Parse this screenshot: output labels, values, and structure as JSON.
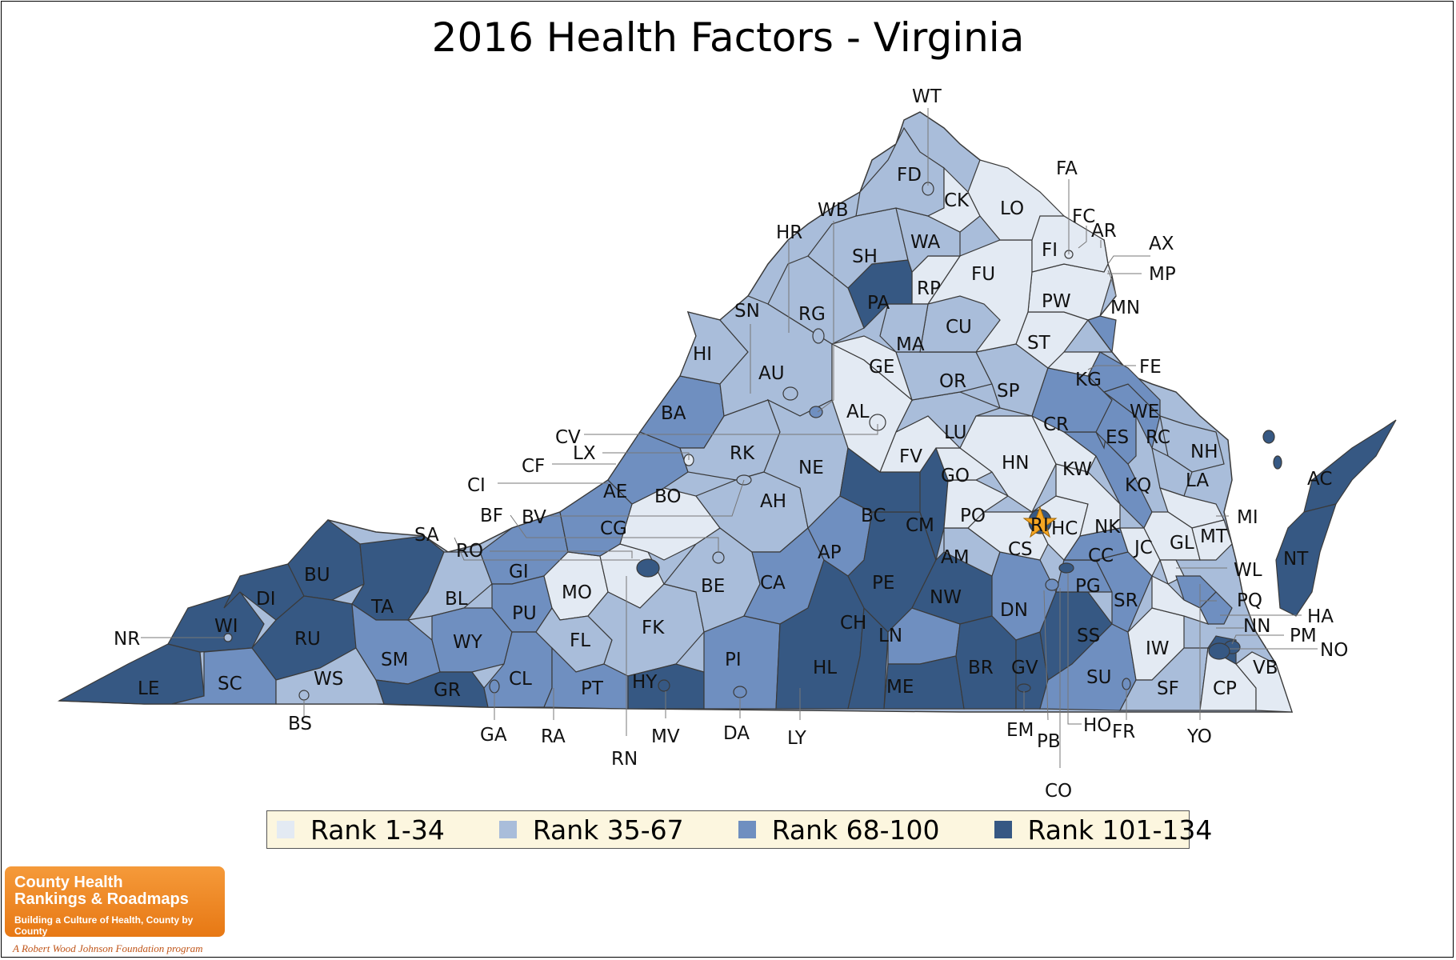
{
  "title": "2016 Health Factors - Virginia",
  "colors": {
    "rank_1_34": "#e3eaf3",
    "rank_35_67": "#a9bdda",
    "rank_68_100": "#6f8fc0",
    "rank_101_134": "#365883",
    "border": "#3a3a3a",
    "star": "#f5a623"
  },
  "legend": [
    {
      "label": "Rank 1-34",
      "color": "#e3eaf3"
    },
    {
      "label": "Rank 35-67",
      "color": "#a9bdda"
    },
    {
      "label": "Rank 68-100",
      "color": "#6f8fc0"
    },
    {
      "label": "Rank 101-134",
      "color": "#365883"
    }
  ],
  "counties": [
    {
      "code": "WT",
      "tier": 2
    },
    {
      "code": "FD",
      "tier": 2
    },
    {
      "code": "CK",
      "tier": 1
    },
    {
      "code": "LO",
      "tier": 1
    },
    {
      "code": "FA",
      "tier": 1
    },
    {
      "code": "FC",
      "tier": 1
    },
    {
      "code": "AR",
      "tier": 1
    },
    {
      "code": "AX",
      "tier": 1
    },
    {
      "code": "FI",
      "tier": 1
    },
    {
      "code": "MP",
      "tier": 1
    },
    {
      "code": "MN",
      "tier": 2
    },
    {
      "code": "WB",
      "tier": 2
    },
    {
      "code": "HR",
      "tier": 2
    },
    {
      "code": "SH",
      "tier": 2
    },
    {
      "code": "WA",
      "tier": 2
    },
    {
      "code": "FU",
      "tier": 1
    },
    {
      "code": "PW",
      "tier": 1
    },
    {
      "code": "PA",
      "tier": 4
    },
    {
      "code": "RP",
      "tier": 1
    },
    {
      "code": "RG",
      "tier": 2
    },
    {
      "code": "SN",
      "tier": 2
    },
    {
      "code": "CU",
      "tier": 2
    },
    {
      "code": "ST",
      "tier": 1
    },
    {
      "code": "MA",
      "tier": 2
    },
    {
      "code": "HI",
      "tier": 2
    },
    {
      "code": "AU",
      "tier": 2
    },
    {
      "code": "GE",
      "tier": 1
    },
    {
      "code": "FE",
      "tier": 2
    },
    {
      "code": "KG",
      "tier": 1
    },
    {
      "code": "OR",
      "tier": 2
    },
    {
      "code": "SP",
      "tier": 2
    },
    {
      "code": "BA",
      "tier": 3
    },
    {
      "code": "AL",
      "tier": 1
    },
    {
      "code": "WE",
      "tier": 3
    },
    {
      "code": "CR",
      "tier": 3
    },
    {
      "code": "CV",
      "tier": 2
    },
    {
      "code": "LU",
      "tier": 2
    },
    {
      "code": "ES",
      "tier": 3
    },
    {
      "code": "RC",
      "tier": 3
    },
    {
      "code": "LX",
      "tier": 2
    },
    {
      "code": "RK",
      "tier": 2
    },
    {
      "code": "NH",
      "tier": 2
    },
    {
      "code": "FV",
      "tier": 1
    },
    {
      "code": "HN",
      "tier": 1
    },
    {
      "code": "CF",
      "tier": 3
    },
    {
      "code": "NE",
      "tier": 2
    },
    {
      "code": "KW",
      "tier": 1
    },
    {
      "code": "LA",
      "tier": 2
    },
    {
      "code": "AC",
      "tier": 4
    },
    {
      "code": "CI",
      "tier": 3
    },
    {
      "code": "AE",
      "tier": 3
    },
    {
      "code": "GO",
      "tier": 1
    },
    {
      "code": "KQ",
      "tier": 3
    },
    {
      "code": "BO",
      "tier": 1
    },
    {
      "code": "BF",
      "tier": 2
    },
    {
      "code": "AH",
      "tier": 2
    },
    {
      "code": "BV",
      "tier": 2
    },
    {
      "code": "BC",
      "tier": 4
    },
    {
      "code": "PO",
      "tier": 1
    },
    {
      "code": "RI",
      "tier": 4
    },
    {
      "code": "HC",
      "tier": 1
    },
    {
      "code": "MI",
      "tier": 1
    },
    {
      "code": "CG",
      "tier": 3
    },
    {
      "code": "CM",
      "tier": 4
    },
    {
      "code": "NK",
      "tier": 1
    },
    {
      "code": "MT",
      "tier": 1
    },
    {
      "code": "SA",
      "tier": 3
    },
    {
      "code": "CS",
      "tier": 1
    },
    {
      "code": "GL",
      "tier": 1
    },
    {
      "code": "JC",
      "tier": 1
    },
    {
      "code": "RO",
      "tier": 2
    },
    {
      "code": "AP",
      "tier": 3
    },
    {
      "code": "AM",
      "tier": 2
    },
    {
      "code": "CC",
      "tier": 3
    },
    {
      "code": "GI",
      "tier": 3
    },
    {
      "code": "WL",
      "tier": 1
    },
    {
      "code": "BU",
      "tier": 4
    },
    {
      "code": "MO",
      "tier": 1
    },
    {
      "code": "CA",
      "tier": 3
    },
    {
      "code": "PE",
      "tier": 4
    },
    {
      "code": "PG",
      "tier": 3
    },
    {
      "code": "PQ",
      "tier": 2
    },
    {
      "code": "BE",
      "tier": 2
    },
    {
      "code": "NW",
      "tier": 4
    },
    {
      "code": "HA",
      "tier": 3
    },
    {
      "code": "DI",
      "tier": 4
    },
    {
      "code": "TA",
      "tier": 4
    },
    {
      "code": "BL",
      "tier": 2
    },
    {
      "code": "PU",
      "tier": 3
    },
    {
      "code": "DN",
      "tier": 3
    },
    {
      "code": "SR",
      "tier": 3
    },
    {
      "code": "NN",
      "tier": 3
    },
    {
      "code": "NT",
      "tier": 4
    },
    {
      "code": "PM",
      "tier": 2
    },
    {
      "code": "FL",
      "tier": 2
    },
    {
      "code": "FK",
      "tier": 2
    },
    {
      "code": "CH",
      "tier": 4
    },
    {
      "code": "SS",
      "tier": 4
    },
    {
      "code": "NR",
      "tier": 2
    },
    {
      "code": "WI",
      "tier": 4
    },
    {
      "code": "RU",
      "tier": 4
    },
    {
      "code": "WY",
      "tier": 3
    },
    {
      "code": "LN",
      "tier": 3
    },
    {
      "code": "NO",
      "tier": 4
    },
    {
      "code": "IW",
      "tier": 1
    },
    {
      "code": "SM",
      "tier": 3
    },
    {
      "code": "PI",
      "tier": 3
    },
    {
      "code": "VB",
      "tier": 1
    },
    {
      "code": "LE",
      "tier": 4
    },
    {
      "code": "SC",
      "tier": 3
    },
    {
      "code": "WS",
      "tier": 2
    },
    {
      "code": "HL",
      "tier": 4
    },
    {
      "code": "BR",
      "tier": 4
    },
    {
      "code": "GV",
      "tier": 4
    },
    {
      "code": "SU",
      "tier": 3
    },
    {
      "code": "CL",
      "tier": 3
    },
    {
      "code": "GR",
      "tier": 4
    },
    {
      "code": "HY",
      "tier": 4
    },
    {
      "code": "PT",
      "tier": 3
    },
    {
      "code": "ME",
      "tier": 4
    },
    {
      "code": "SF",
      "tier": 2
    },
    {
      "code": "CP",
      "tier": 1
    },
    {
      "code": "BS",
      "tier": 2
    },
    {
      "code": "GA",
      "tier": 3
    },
    {
      "code": "RA",
      "tier": 2
    },
    {
      "code": "MV",
      "tier": 4
    },
    {
      "code": "DA",
      "tier": 3
    },
    {
      "code": "LY",
      "tier": 3
    },
    {
      "code": "EM",
      "tier": 4
    },
    {
      "code": "HO",
      "tier": 3
    },
    {
      "code": "FR",
      "tier": 3
    },
    {
      "code": "YO",
      "tier": 1
    },
    {
      "code": "PB",
      "tier": 4
    },
    {
      "code": "RN",
      "tier": 2
    },
    {
      "code": "CO",
      "tier": 3
    }
  ],
  "logo": {
    "line1": "County Health",
    "line2": "Rankings & Roadmaps",
    "tagline": "Building a Culture of Health, County by County",
    "footer": "A Robert Wood Johnson Foundation program"
  }
}
